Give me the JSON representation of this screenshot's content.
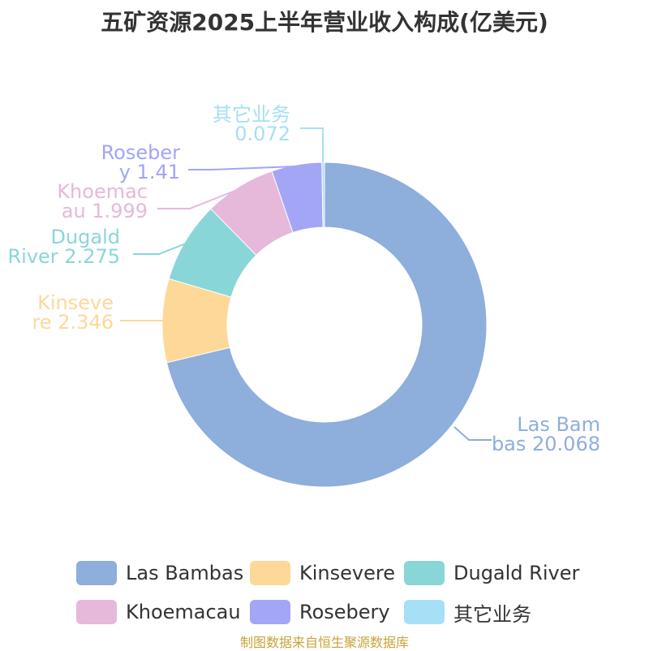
{
  "title": "五矿资源2025上半年营业收入构成(亿美元)",
  "source": "制图数据来自恒生聚源数据库",
  "chart_data": {
    "type": "pie",
    "style": "donut",
    "title": "五矿资源2025上半年营业收入构成(亿美元)",
    "series": [
      {
        "name": "Las Bambas",
        "value": 20.068,
        "color": "#8eaedb",
        "label_lines": [
          "Las Bam",
          "bas 20.068"
        ]
      },
      {
        "name": "Kinsevere",
        "value": 2.346,
        "color": "#fdd898",
        "label_lines": [
          "Kinseve",
          "re 2.346"
        ]
      },
      {
        "name": "Dugald River",
        "value": 2.275,
        "color": "#89d6d8",
        "label_lines": [
          "Dugald",
          "River 2.275"
        ]
      },
      {
        "name": "Khoemacau",
        "value": 1.999,
        "color": "#e6b8d9",
        "label_lines": [
          "Khoemac",
          "au 1.999"
        ]
      },
      {
        "name": "Rosebery",
        "value": 1.41,
        "color": "#a3a5f5",
        "label_lines": [
          "Roseber",
          "y 1.41"
        ]
      },
      {
        "name": "其它业务",
        "value": 0.072,
        "color": "#a6dff6",
        "label_lines": [
          "其它业务",
          "0.072"
        ]
      }
    ],
    "legend_position": "bottom"
  },
  "legend": {
    "items": [
      {
        "label": "Las Bambas",
        "color": "#8eaedb"
      },
      {
        "label": "Kinsevere",
        "color": "#fdd898"
      },
      {
        "label": "Dugald River",
        "color": "#89d6d8"
      },
      {
        "label": "Khoemacau",
        "color": "#e6b8d9"
      },
      {
        "label": "Rosebery",
        "color": "#a3a5f5"
      },
      {
        "label": "其它业务",
        "color": "#a6dff6"
      }
    ]
  }
}
